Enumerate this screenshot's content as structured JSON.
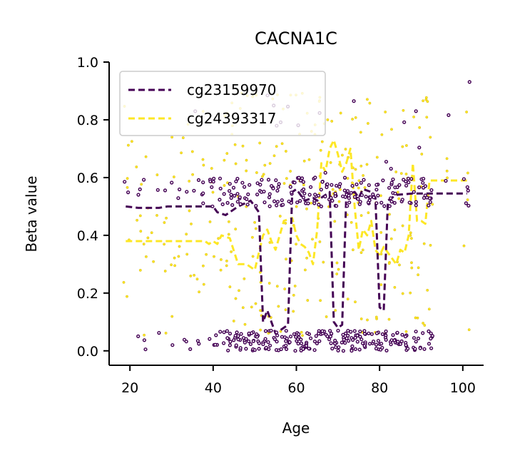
{
  "chart_data": {
    "type": "scatter",
    "title": "CACNA1C",
    "xlabel": "Age",
    "ylabel": "Beta value",
    "xlim": [
      15,
      105
    ],
    "ylim": [
      -0.05,
      1.0
    ],
    "xticks": [
      20,
      40,
      60,
      80,
      100
    ],
    "yticks": [
      0.0,
      0.2,
      0.4,
      0.6,
      0.8,
      1.0
    ],
    "ytick_labels": [
      "0.0",
      "0.2",
      "0.4",
      "0.6",
      "0.8",
      "1.0"
    ],
    "grid": false,
    "legend_position": "top-left",
    "series": [
      {
        "name": "cg23159970",
        "color": "#440154",
        "trend": [
          [
            19,
            0.5
          ],
          [
            22,
            0.495
          ],
          [
            27,
            0.495
          ],
          [
            29,
            0.5
          ],
          [
            35,
            0.5
          ],
          [
            40,
            0.5
          ],
          [
            41,
            0.48
          ],
          [
            43,
            0.47
          ],
          [
            46,
            0.5
          ],
          [
            49,
            0.52
          ],
          [
            50,
            0.5
          ],
          [
            51,
            0.48
          ],
          [
            52,
            0.1
          ],
          [
            53,
            0.14
          ],
          [
            55,
            0.06
          ],
          [
            57,
            0.08
          ],
          [
            58,
            0.09
          ],
          [
            59,
            0.55
          ],
          [
            60,
            0.56
          ],
          [
            62,
            0.52
          ],
          [
            64,
            0.53
          ],
          [
            65,
            0.52
          ],
          [
            66,
            0.53
          ],
          [
            67,
            0.54
          ],
          [
            68,
            0.55
          ],
          [
            69,
            0.1
          ],
          [
            70,
            0.08
          ],
          [
            71,
            0.09
          ],
          [
            72,
            0.54
          ],
          [
            74,
            0.55
          ],
          [
            75,
            0.53
          ],
          [
            76,
            0.56
          ],
          [
            78,
            0.55
          ],
          [
            79,
            0.53
          ],
          [
            80,
            0.15
          ],
          [
            81,
            0.14
          ],
          [
            82,
            0.52
          ],
          [
            84,
            0.54
          ],
          [
            88,
            0.545
          ],
          [
            92,
            0.545
          ],
          [
            101,
            0.545
          ]
        ],
        "upper_ages": [
          19,
          22,
          24,
          26,
          28,
          30,
          32,
          33,
          35,
          36,
          37,
          38,
          40,
          42,
          44,
          45,
          46,
          47,
          48,
          49,
          50,
          51,
          52,
          53,
          54,
          55,
          56,
          57,
          58,
          59,
          60,
          61,
          62,
          63,
          64,
          65,
          66,
          67,
          68,
          69,
          70,
          71,
          72,
          73,
          74,
          75,
          76,
          77,
          78,
          79,
          80,
          81,
          82,
          83,
          84,
          85,
          86,
          87,
          88,
          89,
          90,
          91,
          92,
          96,
          101
        ],
        "lower_ages": [
          22,
          24,
          27,
          30,
          33,
          35,
          37,
          39,
          41,
          43,
          44,
          45,
          46,
          47,
          48,
          49,
          50,
          51,
          52,
          53,
          54,
          55,
          56,
          57,
          58,
          59,
          60,
          61,
          62,
          63,
          64,
          65,
          66,
          67,
          68,
          69,
          70,
          71,
          72,
          73,
          74,
          75,
          76,
          77,
          78,
          79,
          80,
          81,
          82,
          83,
          84,
          85,
          86,
          87,
          88,
          90,
          92
        ]
      },
      {
        "name": "cg24393317",
        "color": "#fde725",
        "trend": [
          [
            19,
            0.38
          ],
          [
            25,
            0.38
          ],
          [
            30,
            0.38
          ],
          [
            35,
            0.38
          ],
          [
            38,
            0.38
          ],
          [
            39,
            0.37
          ],
          [
            40,
            0.38
          ],
          [
            41,
            0.37
          ],
          [
            42,
            0.4
          ],
          [
            44,
            0.39
          ],
          [
            46,
            0.3
          ],
          [
            48,
            0.3
          ],
          [
            50,
            0.28
          ],
          [
            52,
            0.4
          ],
          [
            53,
            0.42
          ],
          [
            54,
            0.38
          ],
          [
            55,
            0.35
          ],
          [
            57,
            0.45
          ],
          [
            59,
            0.46
          ],
          [
            60,
            0.4
          ],
          [
            61,
            0.37
          ],
          [
            62,
            0.36
          ],
          [
            63,
            0.34
          ],
          [
            64,
            0.3
          ],
          [
            65,
            0.42
          ],
          [
            66,
            0.65
          ],
          [
            67,
            0.62
          ],
          [
            68,
            0.7
          ],
          [
            69,
            0.73
          ],
          [
            70,
            0.68
          ],
          [
            71,
            0.62
          ],
          [
            72,
            0.65
          ],
          [
            73,
            0.7
          ],
          [
            74,
            0.5
          ],
          [
            75,
            0.35
          ],
          [
            76,
            0.42
          ],
          [
            77,
            0.4
          ],
          [
            78,
            0.45
          ],
          [
            79,
            0.35
          ],
          [
            80,
            0.33
          ],
          [
            81,
            0.36
          ],
          [
            82,
            0.34
          ],
          [
            83,
            0.32
          ],
          [
            84,
            0.3
          ],
          [
            85,
            0.35
          ],
          [
            86,
            0.34
          ],
          [
            87,
            0.4
          ],
          [
            88,
            0.65
          ],
          [
            89,
            0.45
          ],
          [
            90,
            0.45
          ],
          [
            91,
            0.44
          ],
          [
            92,
            0.59
          ],
          [
            96,
            0.59
          ],
          [
            101,
            0.59
          ]
        ],
        "ages": [
          19,
          20,
          22,
          24,
          26,
          28,
          30,
          32,
          34,
          35,
          36,
          38,
          40,
          42,
          43,
          44,
          45,
          46,
          47,
          48,
          49,
          50,
          51,
          52,
          53,
          54,
          55,
          56,
          57,
          58,
          59,
          60,
          61,
          62,
          63,
          64,
          65,
          66,
          67,
          68,
          69,
          70,
          71,
          72,
          73,
          74,
          75,
          76,
          77,
          78,
          79,
          80,
          81,
          82,
          83,
          84,
          85,
          86,
          87,
          88,
          89,
          90,
          91,
          92,
          96,
          101
        ]
      }
    ]
  }
}
